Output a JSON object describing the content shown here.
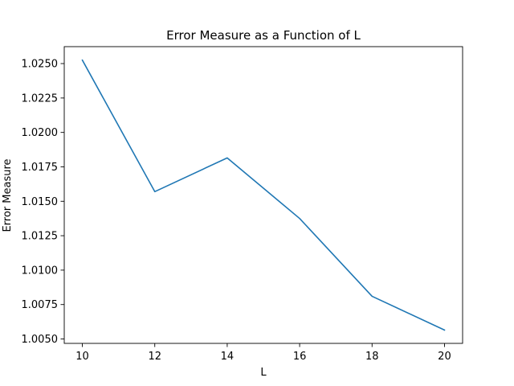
{
  "chart_data": {
    "type": "line",
    "title": "Error Measure as a Function of L",
    "xlabel": "L",
    "ylabel": "Error Measure",
    "x": [
      10,
      12,
      14,
      16,
      18,
      20
    ],
    "series": [
      {
        "values": [
          1.02525,
          1.0157,
          1.01815,
          1.01375,
          1.0081,
          1.00565
        ],
        "color": "#1f77b4"
      }
    ],
    "xlim": [
      9.5,
      20.5
    ],
    "ylim": [
      1.00468,
      1.02623
    ],
    "xticks": [
      10,
      12,
      14,
      16,
      18,
      20
    ],
    "yticks": [
      1.005,
      1.0075,
      1.01,
      1.0125,
      1.015,
      1.0175,
      1.02,
      1.0225,
      1.025
    ],
    "xtick_labels": [
      "10",
      "12",
      "14",
      "16",
      "18",
      "20"
    ],
    "ytick_labels": [
      "1.0050",
      "1.0075",
      "1.0100",
      "1.0125",
      "1.0150",
      "1.0175",
      "1.0200",
      "1.0225",
      "1.0250"
    ],
    "grid": false,
    "legend": "none"
  }
}
